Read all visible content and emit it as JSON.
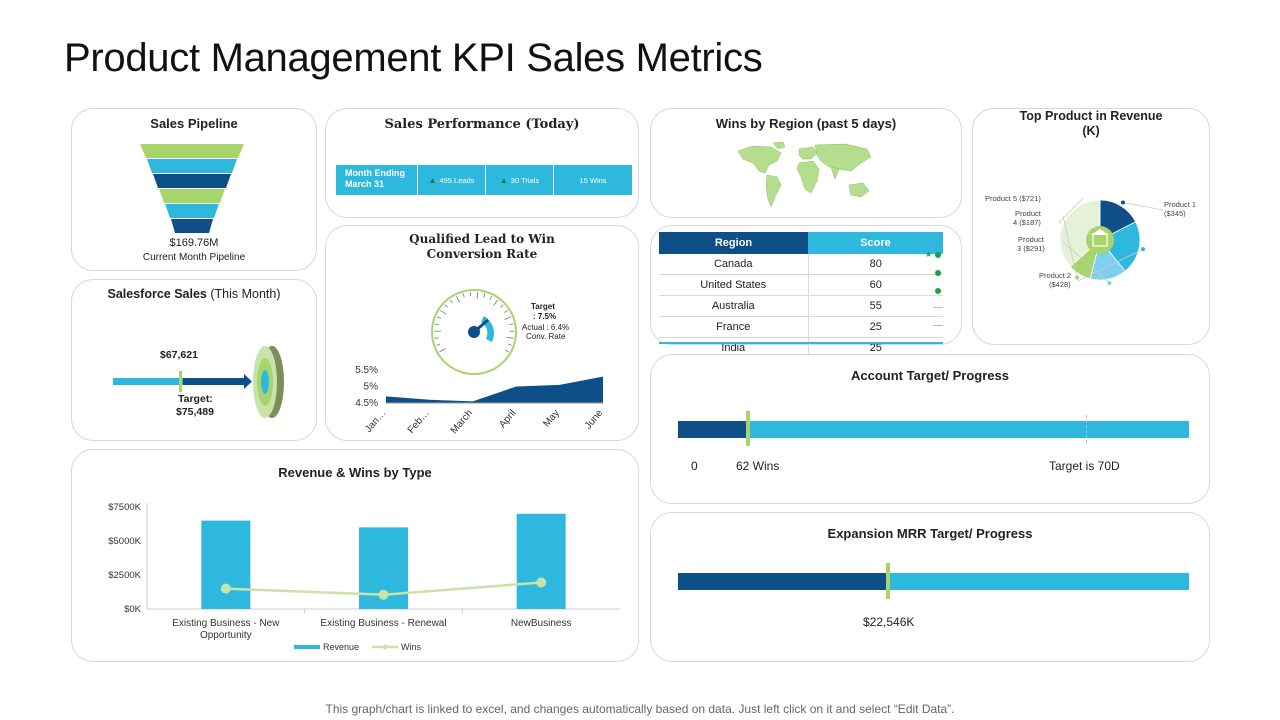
{
  "title": "Product Management KPI Sales Metrics",
  "footer": "This graph/chart is linked to excel, and changes automatically based on data. Just left click on it and select “Edit Data”.",
  "colors": {
    "light_blue": "#2fb8dd",
    "dark_blue": "#0d4f86",
    "light_green": "#a8d56b",
    "pale_green": "#c8e3a9",
    "gray_border": "#d7d7d7"
  },
  "sales_pipeline": {
    "title": "Sales Pipeline",
    "value": "$169.76M",
    "caption": "Current Month Pipeline"
  },
  "salesforce": {
    "title_bold": "Salesforce Sales",
    "title_rest": " (This Month)",
    "value": "$67,621",
    "target_label": "Target:",
    "target_value": "$75,489"
  },
  "sales_performance": {
    "title": "Sales Performance (Today)",
    "cells": [
      "Month Ending March 31",
      "495 Leads",
      "30 Trials",
      "15 Wins"
    ]
  },
  "conversion": {
    "title_line1": "Qualified Lead to Win",
    "title_line2": "Conversion Rate",
    "target_line1": "Target",
    "target_line2": ": 7.5%",
    "actual_line1": "Actual : 6.4%",
    "actual_line2": "Conv. Rate"
  },
  "wins_by_region": {
    "title": "Wins by Region (past 5 days)",
    "col_region": "Region",
    "col_score": "Score",
    "rows": [
      {
        "region": "Canada",
        "score": "80"
      },
      {
        "region": "United States",
        "score": "60"
      },
      {
        "region": "Australia",
        "score": "55"
      },
      {
        "region": "France",
        "score": "25"
      },
      {
        "region": "India",
        "score": "25"
      }
    ]
  },
  "top_product": {
    "title_line1": "Top Product in Revenue",
    "title_line2": "(K)",
    "labels": {
      "p5": "Product 5 ($721)",
      "p4a": "Product",
      "p4b": "4 ($187)",
      "p3a": "Product",
      "p3b": "3 ($291)",
      "p2a": "Product 2",
      "p2b": "($428)",
      "p1a": "Product 1",
      "p1b": "($345)"
    }
  },
  "account_target": {
    "title": "Account Target/ Progress",
    "zero": "0",
    "wins": "62 Wins",
    "target": "Target is 70D",
    "progress": 0.1363
  },
  "expansion_mrr": {
    "title": "Expansion MRR Target/ Progress",
    "value": "$22,546K",
    "progress": 0.41
  },
  "revenue_wins": {
    "title": "Revenue & Wins by Type",
    "legend_revenue": "Revenue",
    "legend_wins": "Wins"
  },
  "chart_data": [
    {
      "type": "bar",
      "title": "Revenue & Wins by Type",
      "categories": [
        "Existing Business - New Opportunity",
        "Existing Business - Renewal",
        "NewBusiness"
      ],
      "series": [
        {
          "name": "Revenue",
          "type": "bar",
          "values": [
            6500,
            6000,
            7000
          ]
        },
        {
          "name": "Wins",
          "type": "line",
          "values": [
            1500,
            1050,
            1950
          ]
        }
      ],
      "yticks": [
        "$7500K",
        "$5000K",
        "$2500K",
        "$0K"
      ],
      "ylim": [
        0,
        7500
      ]
    },
    {
      "type": "area",
      "title": "Qualified Lead to Win Conversion Rate",
      "categories": [
        "Jan…",
        "Feb…",
        "March",
        "April",
        "May",
        "June"
      ],
      "values": [
        4.7,
        4.6,
        4.55,
        5.0,
        5.05,
        5.3
      ],
      "yticks": [
        "5.5%",
        "5%",
        "4.5%"
      ],
      "ylim": [
        4.5,
        5.5
      ]
    },
    {
      "type": "pie",
      "title": "Top Product in Revenue (K)",
      "categories": [
        "Product 1",
        "Product 2",
        "Product 3",
        "Product 4",
        "Product 5"
      ],
      "values": [
        345,
        428,
        291,
        187,
        721
      ]
    }
  ]
}
